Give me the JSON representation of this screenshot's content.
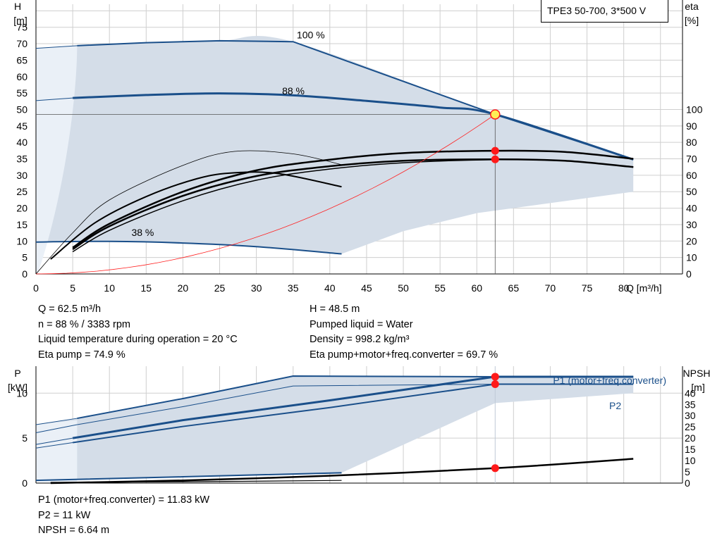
{
  "model": "TPE3 50-700, 3*500 V",
  "colors": {
    "envelope": "#d4dde8",
    "envelope_light": "#eaf0f7",
    "curve_blue": "#1a4f8a",
    "curve_black": "#000000",
    "system": "#ff2020",
    "marker": "#ff1a1a",
    "duty_fill": "#ffee55",
    "grid": "#cfcfcf"
  },
  "chart_data": [
    {
      "type": "line",
      "name": "head-efficiency",
      "xlabel": "Q [m³/h]",
      "ylabel_left": [
        "H",
        "[m]"
      ],
      "ylabel_right": [
        "eta",
        "[%]"
      ],
      "xlim": [
        0,
        88
      ],
      "ylim": [
        0,
        82
      ],
      "x_ticks": [
        0,
        5,
        10,
        15,
        20,
        25,
        30,
        35,
        40,
        45,
        50,
        55,
        60,
        65,
        70,
        75,
        80
      ],
      "h_ticks": [
        0,
        5,
        10,
        15,
        20,
        25,
        30,
        35,
        40,
        45,
        50,
        55,
        60,
        65,
        70,
        75
      ],
      "eta_ticks": [
        0,
        10,
        20,
        30,
        40,
        50,
        60,
        70,
        80,
        90,
        100
      ],
      "speed_labels": [
        {
          "text": "100 %",
          "q": 35.5,
          "h": 72
        },
        {
          "text": "88 %",
          "q": 33.5,
          "h": 55
        },
        {
          "text": "38 %",
          "q": 13,
          "h": 12
        }
      ],
      "head_curves": [
        {
          "name": "100 %",
          "points": [
            [
              5.6,
              69.4
            ],
            [
              15,
              70.3
            ],
            [
              25,
              70.9
            ],
            [
              35,
              70.6
            ],
            [
              62.5,
              48.5
            ],
            [
              81.3,
              34.8
            ]
          ]
        },
        {
          "name": "88 %",
          "points": [
            [
              5,
              53.5
            ],
            [
              15,
              54.4
            ],
            [
              25,
              54.9
            ],
            [
              35,
              54.3
            ],
            [
              45,
              52.6
            ],
            [
              55,
              50.6
            ],
            [
              62.5,
              48.5
            ],
            [
              81.3,
              34.8
            ]
          ]
        },
        {
          "name": "38 %",
          "points": [
            [
              0,
              9.7
            ],
            [
              10,
              9.9
            ],
            [
              20,
              9.4
            ],
            [
              30,
              8.3
            ],
            [
              41.6,
              6.1
            ]
          ]
        }
      ],
      "efficiency_curves": [
        {
          "name": "pump",
          "points": [
            [
              5,
              16
            ],
            [
              10,
              30.5
            ],
            [
              20,
              50
            ],
            [
              30,
              63
            ],
            [
              40,
              69.5
            ],
            [
              50,
              73.5
            ],
            [
              62.5,
              74.9
            ],
            [
              72,
              74.2
            ],
            [
              81.3,
              70
            ]
          ]
        },
        {
          "name": "pump+motor+freq.converter",
          "points": [
            [
              5,
              15
            ],
            [
              10,
              29
            ],
            [
              20,
              47.5
            ],
            [
              30,
              59.5
            ],
            [
              40,
              65.5
            ],
            [
              50,
              68.8
            ],
            [
              62.5,
              69.7
            ],
            [
              72,
              68.8
            ],
            [
              81.3,
              65
            ]
          ]
        },
        {
          "name": "curve-3",
          "points": [
            [
              5,
              13.5
            ],
            [
              10,
              26.5
            ],
            [
              20,
              44.5
            ],
            [
              30,
              57
            ],
            [
              40,
              63.8
            ],
            [
              50,
              67.6
            ],
            [
              62.5,
              69.5
            ],
            [
              72,
              68.8
            ],
            [
              81.3,
              65
            ]
          ]
        },
        {
          "name": "curve-4",
          "points": [
            [
              2,
              9
            ],
            [
              8,
              31
            ],
            [
              15,
              47
            ],
            [
              22,
              58
            ],
            [
              27,
              61.5
            ],
            [
              33,
              61
            ],
            [
              41.6,
              53
            ]
          ]
        },
        {
          "name": "curve-5",
          "points": [
            [
              0,
              0
            ],
            [
              5,
              25
            ],
            [
              10,
              45
            ],
            [
              20,
              66
            ],
            [
              27,
              74.5
            ],
            [
              35,
              73
            ],
            [
              42,
              66
            ]
          ]
        }
      ],
      "system_curve": {
        "h0": 0,
        "q_end": 62.5,
        "h_end": 48.5
      },
      "duty_point": {
        "q": 62.5,
        "h": 48.5
      },
      "eta_markers": [
        74.9,
        69.7
      ]
    },
    {
      "type": "line",
      "name": "power-npsh",
      "ylabel_left": [
        "P",
        "[kW]"
      ],
      "ylabel_right": [
        "NPSH",
        "[m]"
      ],
      "xlim": [
        0,
        88
      ],
      "p_ticks": [
        0,
        5,
        10
      ],
      "npsh_ticks": [
        0,
        5,
        10,
        15,
        20,
        25,
        30,
        35,
        40
      ],
      "plim": [
        0,
        13
      ],
      "npshlim": [
        0,
        52
      ],
      "series_labels": {
        "p1": "P1 (motor+freq.converter)",
        "p2": "P2"
      },
      "power_curves": [
        {
          "name": "P1 100%",
          "points": [
            [
              5.6,
              7.2
            ],
            [
              20,
              9.4
            ],
            [
              35,
              11.9
            ],
            [
              62.5,
              11.83
            ],
            [
              81.3,
              11.83
            ]
          ]
        },
        {
          "name": "P2 100%",
          "points": [
            [
              5.6,
              6.5
            ],
            [
              20,
              8.5
            ],
            [
              35,
              10.8
            ],
            [
              62.5,
              11.0
            ],
            [
              81.3,
              11.0
            ]
          ]
        },
        {
          "name": "P1 88%",
          "points": [
            [
              5,
              5.0
            ],
            [
              20,
              7.0
            ],
            [
              40,
              9.2
            ],
            [
              62.5,
              11.83
            ],
            [
              81.3,
              11.83
            ]
          ]
        },
        {
          "name": "P2 88%",
          "points": [
            [
              5,
              4.5
            ],
            [
              20,
              6.3
            ],
            [
              40,
              8.4
            ],
            [
              62.5,
              11.0
            ],
            [
              81.3,
              11.0
            ]
          ]
        },
        {
          "name": "P 38%",
          "points": [
            [
              0,
              0.3
            ],
            [
              20,
              0.7
            ],
            [
              41.6,
              1.15
            ]
          ]
        }
      ],
      "npsh_curve": {
        "name": "NPSH",
        "points": [
          [
            2,
            0
          ],
          [
            20,
            1.2
          ],
          [
            35,
            2.7
          ],
          [
            50,
            4.6
          ],
          [
            62.5,
            6.64
          ],
          [
            72,
            8.6
          ],
          [
            81.3,
            10.8
          ]
        ]
      },
      "markers": {
        "p1": 11.83,
        "p2": 11.0,
        "npsh": 6.64
      }
    }
  ],
  "info_top_left": [
    "Q = 62.5 m³/h",
    "n = 88 % / 3383 rpm",
    "Liquid temperature during operation = 20 °C",
    "Eta pump = 74.9 %"
  ],
  "info_top_right": [
    "H = 48.5 m",
    "Pumped liquid = Water",
    "Density = 998.2 kg/m³",
    "Eta pump+motor+freq.converter = 69.7 %"
  ],
  "info_bottom": [
    "P1 (motor+freq.converter) = 11.83 kW",
    "P2 = 11 kW",
    "NPSH = 6.64 m"
  ]
}
